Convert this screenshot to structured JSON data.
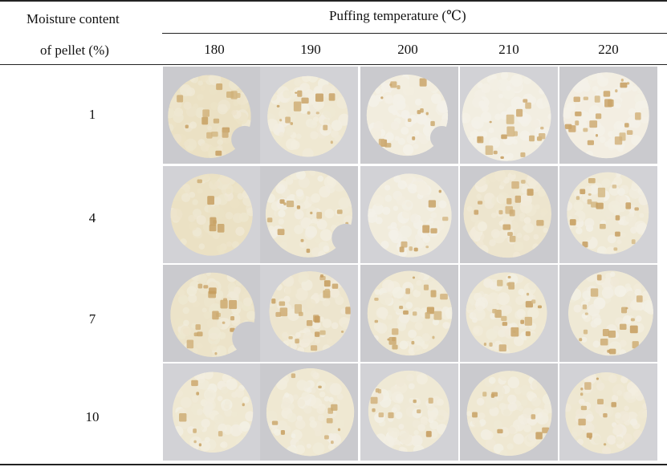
{
  "table": {
    "row_header_line1": "Moisture content",
    "row_header_line2": "of pellet (%)",
    "column_group_header": "Puffing temperature (℃)",
    "temperatures": [
      "180",
      "190",
      "200",
      "210",
      "220"
    ],
    "moisture_levels": [
      "1",
      "4",
      "7",
      "10"
    ]
  },
  "colors": {
    "rule": "#222222",
    "cell_background": "#cfcfd2",
    "puff_white": "#f4f1e8",
    "toast_brown": "#c49a5a",
    "pale_yellow": "#e8dcb8"
  }
}
